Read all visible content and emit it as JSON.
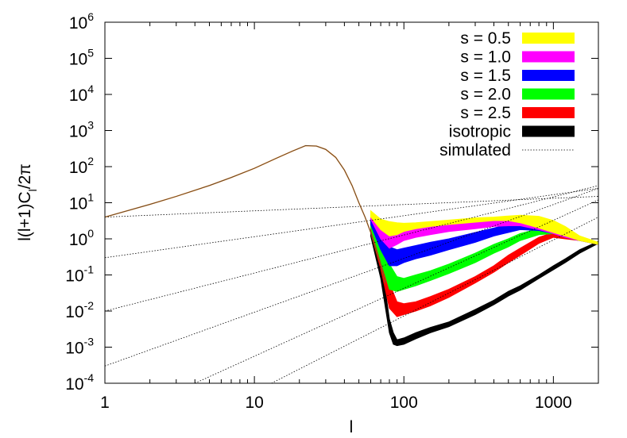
{
  "chart_data": {
    "type": "line",
    "title": "",
    "xlabel": "l",
    "ylabel_parts": {
      "a": "l(l+1)C",
      "sub": "l",
      "b": "/2π"
    },
    "x_scale": "log",
    "y_scale": "log",
    "xlim": [
      1,
      2000
    ],
    "ylim": [
      0.0001,
      1000000
    ],
    "x_ticks": [
      {
        "value": 1,
        "label": "1"
      },
      {
        "value": 10,
        "label": "10"
      },
      {
        "value": 100,
        "label": "100"
      },
      {
        "value": 1000,
        "label": "1000"
      }
    ],
    "y_ticks": [
      {
        "value": 0.0001,
        "base": "10",
        "exp": "-4"
      },
      {
        "value": 0.001,
        "base": "10",
        "exp": "-3"
      },
      {
        "value": 0.01,
        "base": "10",
        "exp": "-2"
      },
      {
        "value": 0.1,
        "base": "10",
        "exp": "-1"
      },
      {
        "value": 1,
        "base": "10",
        "exp": "0"
      },
      {
        "value": 10,
        "base": "10",
        "exp": "1"
      },
      {
        "value": 100,
        "base": "10",
        "exp": "2"
      },
      {
        "value": 1000,
        "base": "10",
        "exp": "3"
      },
      {
        "value": 10000,
        "base": "10",
        "exp": "4"
      },
      {
        "value": 100000,
        "base": "10",
        "exp": "5"
      },
      {
        "value": 1000000,
        "base": "10",
        "exp": "6"
      }
    ],
    "grid": false,
    "legend_position": "top-right",
    "common_curve": {
      "x": [
        1,
        2,
        3,
        5,
        7,
        10,
        14,
        18,
        22,
        26,
        30,
        35,
        40,
        45,
        50,
        55,
        60,
        65,
        70,
        75
      ],
      "y": [
        4,
        9,
        15,
        30,
        50,
        90,
        170,
        270,
        380,
        370,
        300,
        180,
        80,
        30,
        10,
        4,
        1.5,
        0.5,
        0.2,
        0.06
      ]
    },
    "series": [
      {
        "name": "s = 0.5",
        "color": "#ffff00",
        "x": [
          60,
          70,
          80,
          90,
          100,
          120,
          150,
          200,
          300,
          400,
          500,
          600,
          800,
          1000,
          1200,
          1500,
          2000
        ],
        "upper": [
          6,
          3.5,
          3,
          2.8,
          2.7,
          2.8,
          3,
          3.3,
          3.8,
          4,
          4.3,
          4.5,
          4.2,
          3.2,
          2.2,
          1.2,
          0.8
        ],
        "lower": [
          4,
          1.8,
          1.2,
          1.3,
          1.6,
          1.9,
          2.2,
          2.5,
          2.9,
          3.2,
          3.2,
          2.8,
          2,
          1.5,
          1.2,
          0.9,
          0.7
        ]
      },
      {
        "name": "s = 1.0",
        "color": "#ff00ff",
        "x": [
          60,
          70,
          80,
          90,
          100,
          120,
          150,
          200,
          300,
          400,
          500,
          600,
          800,
          1000,
          1200,
          1500,
          2000
        ],
        "upper": [
          5,
          2.2,
          1.6,
          1.6,
          1.7,
          1.9,
          2.1,
          2.5,
          3,
          3.5,
          3.8,
          3.8,
          3,
          2.3,
          1.6,
          1.1,
          0.8
        ],
        "lower": [
          3.5,
          1.0,
          0.55,
          0.7,
          0.9,
          1.1,
          1.3,
          1.6,
          1.9,
          2.2,
          2.3,
          2.3,
          1.8,
          1.4,
          1.1,
          0.9,
          0.7
        ]
      },
      {
        "name": "s = 1.5",
        "color": "#0000ff",
        "x": [
          60,
          70,
          80,
          90,
          100,
          120,
          150,
          200,
          300,
          400,
          500,
          600,
          800,
          1000,
          1200,
          1500,
          2000
        ],
        "upper": [
          4,
          1.3,
          0.6,
          0.5,
          0.55,
          0.65,
          0.8,
          1.0,
          1.5,
          2.0,
          2.5,
          2.7,
          2.6,
          2.0,
          1.5,
          1.0,
          0.8
        ],
        "lower": [
          2.5,
          0.5,
          0.18,
          0.18,
          0.22,
          0.28,
          0.35,
          0.5,
          0.8,
          1.2,
          1.5,
          1.8,
          1.7,
          1.4,
          1.1,
          0.9,
          0.7
        ]
      },
      {
        "name": "s = 2.0",
        "color": "#00ff00",
        "x": [
          60,
          70,
          80,
          90,
          100,
          120,
          150,
          200,
          300,
          400,
          500,
          600,
          800,
          1000,
          1200,
          1500,
          2000
        ],
        "upper": [
          3.5,
          0.9,
          0.2,
          0.09,
          0.08,
          0.1,
          0.13,
          0.2,
          0.4,
          0.7,
          1.0,
          1.4,
          1.9,
          1.8,
          1.4,
          1.0,
          0.8
        ],
        "lower": [
          2.0,
          0.25,
          0.04,
          0.035,
          0.04,
          0.05,
          0.07,
          0.11,
          0.22,
          0.4,
          0.6,
          0.9,
          1.3,
          1.4,
          1.1,
          0.9,
          0.7
        ]
      },
      {
        "name": "s = 2.5",
        "color": "#ff0000",
        "x": [
          60,
          70,
          80,
          90,
          100,
          120,
          150,
          200,
          300,
          400,
          500,
          600,
          800,
          1000,
          1200,
          1500,
          2000
        ],
        "upper": [
          3.0,
          0.6,
          0.06,
          0.018,
          0.016,
          0.018,
          0.025,
          0.04,
          0.09,
          0.18,
          0.35,
          0.55,
          1.1,
          1.5,
          1.3,
          1.0,
          0.8
        ],
        "lower": [
          1.5,
          0.15,
          0.012,
          0.007,
          0.008,
          0.01,
          0.014,
          0.024,
          0.06,
          0.12,
          0.22,
          0.35,
          0.75,
          1.1,
          1.0,
          0.9,
          0.7
        ]
      },
      {
        "name": "isotropic",
        "color": "#000000",
        "x": [
          60,
          70,
          80,
          85,
          90,
          100,
          120,
          150,
          200,
          300,
          400,
          500,
          600,
          800,
          1000,
          1200,
          1500,
          2000
        ],
        "upper": [
          2.5,
          0.3,
          0.006,
          0.0025,
          0.0016,
          0.0018,
          0.0025,
          0.0035,
          0.005,
          0.011,
          0.02,
          0.035,
          0.05,
          0.1,
          0.18,
          0.28,
          0.5,
          0.85
        ],
        "lower": [
          1.2,
          0.08,
          0.0025,
          0.0012,
          0.0011,
          0.0012,
          0.0017,
          0.0025,
          0.0037,
          0.008,
          0.015,
          0.026,
          0.038,
          0.08,
          0.14,
          0.22,
          0.4,
          0.75
        ]
      },
      {
        "name": "simulated",
        "color": "#000000",
        "style": "dotted",
        "lines": [
          {
            "x": [
              1,
              2000
            ],
            "y": [
              4,
              15
            ]
          },
          {
            "x": [
              1,
              2000
            ],
            "y": [
              0.3,
              25
            ]
          },
          {
            "x": [
              1,
              2000
            ],
            "y": [
              0.01,
              30
            ]
          },
          {
            "x": [
              1,
              2000
            ],
            "y": [
              0.0003,
              25
            ]
          },
          {
            "x": [
              4,
              2000
            ],
            "y": [
              0.0001,
              12
            ]
          },
          {
            "x": [
              13,
              2000
            ],
            "y": [
              0.0001,
              4
            ]
          }
        ]
      }
    ]
  }
}
